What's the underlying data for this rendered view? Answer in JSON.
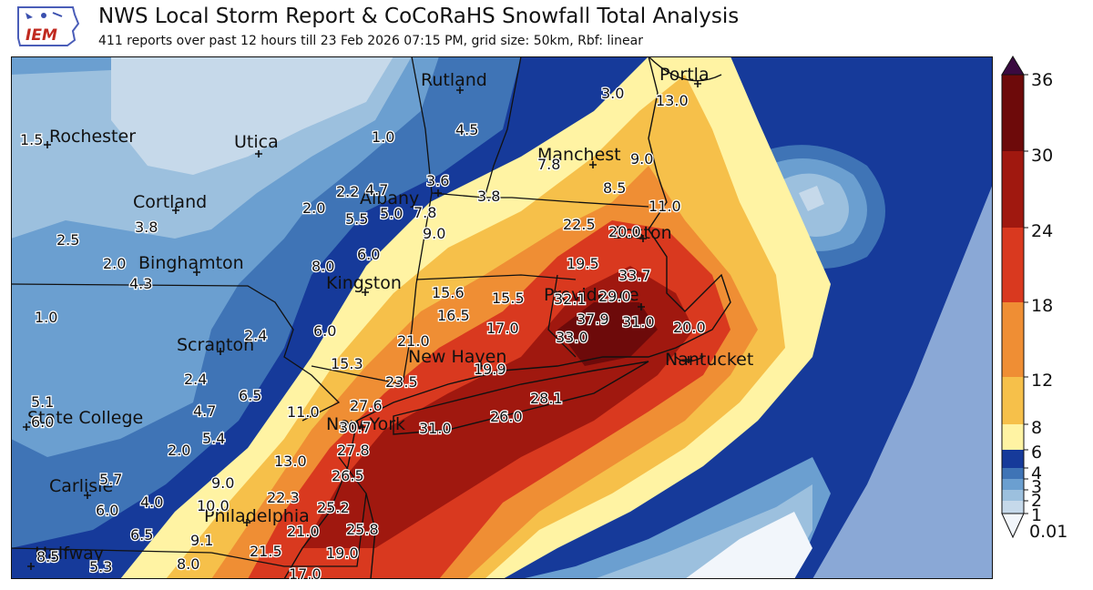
{
  "header": {
    "logo_text": "IEM",
    "title": "NWS Local Storm Report & CoCoRaHS Snowfall Total Analysis",
    "subtitle": "411 reports over past 12 hours till 23 Feb 2026 07:15 PM, grid size: 50km, Rbf: linear"
  },
  "colors": {
    "c0": "#f2f6fb",
    "c1": "#c6d9ea",
    "c2": "#9cc0de",
    "c3": "#6b9fd0",
    "c4": "#3f74b6",
    "c6": "#163a9a",
    "c8": "#fff3a3",
    "c12": "#f6c04a",
    "c18": "#ef8e34",
    "c24": "#d9391f",
    "c30": "#a0180f",
    "c36": "#6d0a0a",
    "over": "#3a0a40",
    "ocean_blue": "#8aa8d6"
  },
  "colorbar": {
    "ticks": [
      "36",
      "30",
      "24",
      "18",
      "12",
      "8",
      "6",
      "4",
      "3",
      "2",
      "1",
      "0.01"
    ]
  },
  "cities": [
    {
      "name": "Rochester",
      "id": "rochester"
    },
    {
      "name": "Utica",
      "id": "utica"
    },
    {
      "name": "Rutland",
      "id": "rutland"
    },
    {
      "name": "Portla",
      "id": "portland"
    },
    {
      "name": "Manchest",
      "id": "manchester"
    },
    {
      "name": "Cortland",
      "id": "cortland"
    },
    {
      "name": "Binghamton",
      "id": "binghamton"
    },
    {
      "name": "Kingston",
      "id": "kingston"
    },
    {
      "name": "Scranton",
      "id": "scranton"
    },
    {
      "name": "New Haven",
      "id": "new-haven"
    },
    {
      "name": "Nantucket",
      "id": "nantucket"
    },
    {
      "name": "State College",
      "id": "state-college"
    },
    {
      "name": "Carlisle",
      "id": "carlisle"
    },
    {
      "name": "Philadelphia",
      "id": "philadelphia"
    },
    {
      "name": "New York",
      "id": "new-york"
    },
    {
      "name": "Providence",
      "id": "providence"
    },
    {
      "name": "Boston",
      "id": "boston"
    },
    {
      "name": "Albany",
      "id": "albany"
    },
    {
      "name": "Halfway",
      "id": "halfway"
    }
  ],
  "values": [
    "1.5",
    "1.0",
    "4.5",
    "3.0",
    "13.0",
    "7.8",
    "9.0",
    "8.5",
    "2.2",
    "4.7",
    "3.6",
    "3.8",
    "2.0",
    "5.5",
    "5.0",
    "7.8",
    "11.0",
    "22.5",
    "20.0",
    "2.5",
    "3.8",
    "9.0",
    "6.0",
    "2.0",
    "4.3",
    "8.0",
    "19.5",
    "33.7",
    "15.6",
    "15.5",
    "32.1",
    "29.0",
    "1.0",
    "16.5",
    "17.0",
    "37.9",
    "31.0",
    "20.0",
    "6.0",
    "21.0",
    "33.0",
    "2.4",
    "15.3",
    "19.9",
    "23.5",
    "28.1",
    "2.4",
    "6.5",
    "11.0",
    "27.6",
    "5.1",
    "4.7",
    "6.0",
    "30.7",
    "31.0",
    "26.0",
    "5.4",
    "2.0",
    "27.8",
    "13.0",
    "26.5",
    "5.7",
    "9.0",
    "22.3",
    "6.0",
    "4.0",
    "10.0",
    "25.2",
    "21.0",
    "25.8",
    "6.5",
    "9.1",
    "8.5",
    "21.5",
    "19.0",
    "5.3",
    "8.0",
    "17.0"
  ]
}
